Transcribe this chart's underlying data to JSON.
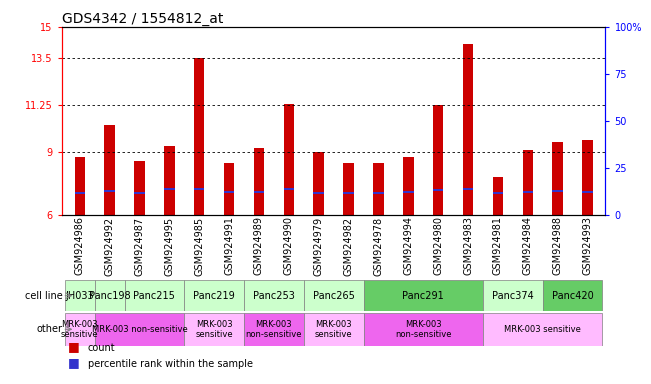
{
  "title": "GDS4342 / 1554812_at",
  "samples": [
    "GSM924986",
    "GSM924992",
    "GSM924987",
    "GSM924995",
    "GSM924985",
    "GSM924991",
    "GSM924989",
    "GSM924990",
    "GSM924979",
    "GSM924982",
    "GSM924978",
    "GSM924994",
    "GSM924980",
    "GSM924983",
    "GSM924981",
    "GSM924984",
    "GSM924988",
    "GSM924993"
  ],
  "bar_heights": [
    8.8,
    10.3,
    8.6,
    9.3,
    13.5,
    8.5,
    9.2,
    11.3,
    9.0,
    8.5,
    8.5,
    8.8,
    11.25,
    14.2,
    7.8,
    9.1,
    9.5,
    9.6
  ],
  "blue_pos": [
    7.05,
    7.15,
    7.05,
    7.25,
    7.25,
    7.1,
    7.1,
    7.25,
    7.05,
    7.05,
    7.05,
    7.1,
    7.2,
    7.25,
    7.05,
    7.1,
    7.15,
    7.1
  ],
  "ymin": 6,
  "ymax": 15,
  "yticks": [
    6,
    9,
    11.25,
    13.5,
    15
  ],
  "ytick_labels": [
    "6",
    "9",
    "11.25",
    "13.5",
    "15"
  ],
  "right_ytick_vals": [
    0,
    25,
    50,
    75,
    100
  ],
  "right_ytick_labels": [
    "0",
    "25",
    "50",
    "75",
    "100%"
  ],
  "gridlines": [
    9,
    11.25,
    13.5
  ],
  "bar_color": "#cc0000",
  "blue_color": "#3333cc",
  "bar_width": 0.35,
  "blue_thickness": 0.13,
  "cell_lines": [
    {
      "name": "JH033",
      "start": 0,
      "end": 1,
      "color": "#ccffcc"
    },
    {
      "name": "Panc198",
      "start": 1,
      "end": 2,
      "color": "#ccffcc"
    },
    {
      "name": "Panc215",
      "start": 2,
      "end": 4,
      "color": "#ccffcc"
    },
    {
      "name": "Panc219",
      "start": 4,
      "end": 6,
      "color": "#ccffcc"
    },
    {
      "name": "Panc253",
      "start": 6,
      "end": 8,
      "color": "#ccffcc"
    },
    {
      "name": "Panc265",
      "start": 8,
      "end": 10,
      "color": "#ccffcc"
    },
    {
      "name": "Panc291",
      "start": 10,
      "end": 14,
      "color": "#66cc66"
    },
    {
      "name": "Panc374",
      "start": 14,
      "end": 16,
      "color": "#ccffcc"
    },
    {
      "name": "Panc420",
      "start": 16,
      "end": 18,
      "color": "#66cc66"
    }
  ],
  "other_rows": [
    {
      "label": "MRK-003\nsensitive",
      "start": 0,
      "end": 1,
      "color": "#ffbbff"
    },
    {
      "label": "MRK-003 non-sensitive",
      "start": 1,
      "end": 4,
      "color": "#ee66ee"
    },
    {
      "label": "MRK-003\nsensitive",
      "start": 4,
      "end": 6,
      "color": "#ffbbff"
    },
    {
      "label": "MRK-003\nnon-sensitive",
      "start": 6,
      "end": 8,
      "color": "#ee66ee"
    },
    {
      "label": "MRK-003\nsensitive",
      "start": 8,
      "end": 10,
      "color": "#ffbbff"
    },
    {
      "label": "MRK-003\nnon-sensitive",
      "start": 10,
      "end": 14,
      "color": "#ee66ee"
    },
    {
      "label": "MRK-003 sensitive",
      "start": 14,
      "end": 18,
      "color": "#ffbbff"
    }
  ],
  "label_fontsize": 7,
  "tick_fontsize": 7,
  "title_fontsize": 10
}
